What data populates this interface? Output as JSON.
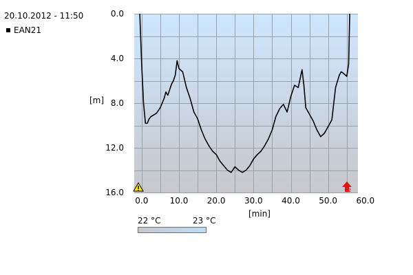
{
  "timestamp": "20.10.2012 - 11:50",
  "legend": [
    {
      "label": "EAN21",
      "color": "#000000"
    }
  ],
  "temperature_scale": {
    "min_label": "22 °C",
    "max_label": "23 °C",
    "gradient_from": "#c8c8cc",
    "gradient_to": "#bcdcf8"
  },
  "icons": {
    "left_bottom": "warning-icon",
    "right_bottom": "red-arrow-up-icon"
  },
  "chart_data": {
    "type": "line",
    "xlabel": "[min]",
    "ylabel": "[m]",
    "xlim": [
      -2,
      58
    ],
    "ylim": [
      0,
      16
    ],
    "y_inverted": true,
    "grid": true,
    "x_ticks": [
      "0.0",
      "10.0",
      "20.0",
      "30.0",
      "40.0",
      "50.0",
      "60.0"
    ],
    "y_ticks": [
      "0.0",
      "4.0",
      "8.0",
      "12.0",
      "16.0"
    ],
    "series": [
      {
        "name": "EAN21",
        "color": "#000000",
        "x": [
          -0.5,
          0,
          0.5,
          1,
          1.5,
          2,
          2.5,
          3,
          4,
          5,
          6,
          6.5,
          7,
          8,
          8.5,
          9,
          9.5,
          10,
          11,
          12,
          13,
          14,
          15,
          16,
          17,
          18,
          19,
          20,
          21,
          22,
          23,
          24,
          25,
          26,
          27,
          28,
          29,
          30,
          31,
          32,
          33,
          34,
          35,
          36,
          37,
          38,
          39,
          40,
          41,
          42,
          43,
          43.5,
          44,
          45,
          46,
          47,
          48,
          49,
          50,
          51,
          52,
          53,
          53.5,
          54,
          55,
          55.5,
          55.8
        ],
        "y": [
          0,
          4.5,
          8,
          9.8,
          9.8,
          9.4,
          9.2,
          9.1,
          8.9,
          8.4,
          7.6,
          7.0,
          7.3,
          6.3,
          6.0,
          5.5,
          4.2,
          4.9,
          5.2,
          6.6,
          7.6,
          8.8,
          9.4,
          10.4,
          11.2,
          11.8,
          12.3,
          12.6,
          13.2,
          13.6,
          14.0,
          14.2,
          13.7,
          14.0,
          14.2,
          14.0,
          13.6,
          13.0,
          12.6,
          12.3,
          11.8,
          11.2,
          10.4,
          9.2,
          8.5,
          8.1,
          8.8,
          7.4,
          6.4,
          6.6,
          5.0,
          6.4,
          8.4,
          9.0,
          9.6,
          10.4,
          11.0,
          10.7,
          10.1,
          9.5,
          6.6,
          5.5,
          5.2,
          5.3,
          5.6,
          4.5,
          0
        ]
      }
    ]
  }
}
